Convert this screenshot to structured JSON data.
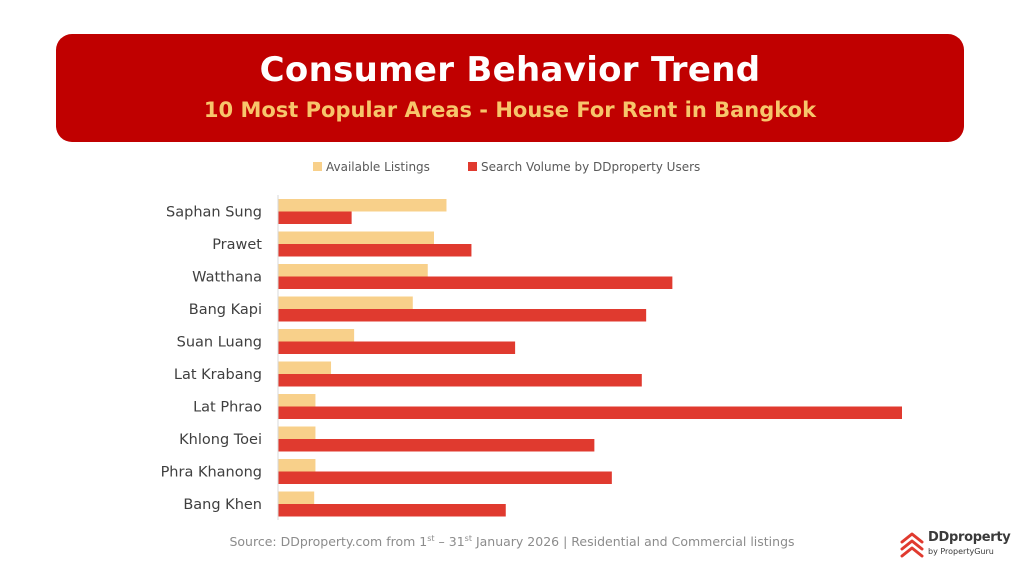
{
  "header": {
    "title": "Consumer Behavior Trend",
    "subtitle": "10 Most Popular Areas - House For Rent in Bangkok"
  },
  "chart_data": {
    "type": "bar",
    "orientation": "horizontal",
    "categories": [
      "Saphan Sung",
      "Prawet",
      "Watthana",
      "Bang Kapi",
      "Suan Luang",
      "Lat Krabang",
      "Lat Phrao",
      "Khlong Toei",
      "Phra Khanong",
      "Bang Khen"
    ],
    "series": [
      {
        "name": "Available Listings",
        "color": "#f8d08a",
        "values": [
          27,
          25,
          24,
          21.6,
          12.2,
          8.5,
          6,
          6,
          6,
          5.8
        ]
      },
      {
        "name": "Search Volume by DDproperty Users",
        "color": "#e03a2f",
        "values": [
          11.8,
          31,
          63.2,
          59,
          38,
          58.3,
          100,
          50.7,
          53.5,
          36.5
        ]
      }
    ],
    "xlim": [
      0,
      100
    ],
    "grid": false,
    "legend": "top-center",
    "axis_values_shown": false
  },
  "footer": {
    "source_prefix": "Source: DDproperty.com from 1",
    "source_sup1": "st",
    "source_mid": "  – 31",
    "source_sup2": "st",
    "source_suffix": " January 2026 | Residential and Commercial listings"
  },
  "logo": {
    "name": "DDproperty",
    "tagline": "by PropertyGuru",
    "color": "#e03a2f",
    "icon": "house-stack-icon"
  }
}
